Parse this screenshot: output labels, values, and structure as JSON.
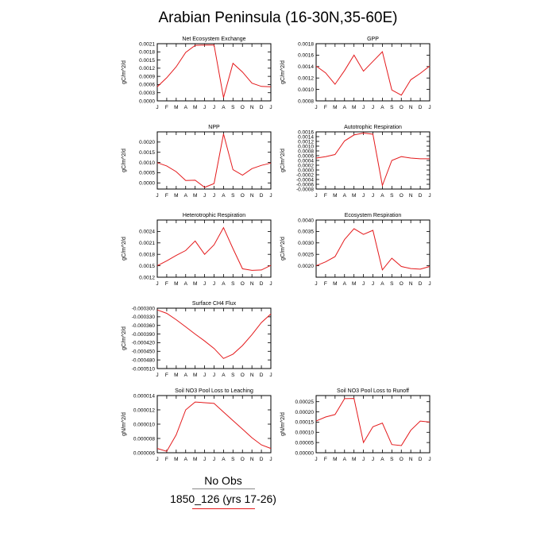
{
  "title": "Arabian Peninsula (16-30N,35-60E)",
  "legend": {
    "obs_label": "No Obs",
    "model_label": "1850_126 (yrs 17-26)",
    "obs_color": "#888888",
    "model_color": "#e41a1c"
  },
  "month_labels": [
    "J",
    "F",
    "M",
    "A",
    "M",
    "J",
    "J",
    "A",
    "S",
    "O",
    "N",
    "D",
    "J"
  ],
  "chart_data": [
    {
      "type": "line",
      "title": "Net Ecosystem Exchange",
      "ylabel": "gC/m^2/d",
      "ylim": [
        0.0,
        0.0021
      ],
      "yticks": [
        "0.0000",
        "0.0003",
        "0.0006",
        "0.0009",
        "0.0012",
        "0.0015",
        "0.0018",
        "0.0021"
      ],
      "series": [
        {
          "values": [
            0.00052,
            0.00085,
            0.00125,
            0.00178,
            0.00204,
            0.00205,
            0.00205,
            0.00012,
            0.00138,
            0.00106,
            0.00065,
            0.00053,
            0.00052
          ]
        }
      ]
    },
    {
      "type": "line",
      "title": "GPP",
      "ylabel": "gC/m^2/d",
      "ylim": [
        0.0008,
        0.0018
      ],
      "yticks": [
        "0.0008",
        "0.0010",
        "0.0012",
        "0.0014",
        "0.0016",
        "0.0018"
      ],
      "series": [
        {
          "values": [
            0.00141,
            0.00129,
            0.00109,
            0.00133,
            0.0016,
            0.00132,
            0.00149,
            0.00166,
            0.00099,
            0.0009,
            0.00117,
            0.00128,
            0.00141
          ]
        }
      ]
    },
    {
      "type": "line",
      "title": "NPP",
      "ylabel": "gC/m^2/d",
      "ylim": [
        -0.0003,
        0.0025
      ],
      "yticks": [
        "0.0000",
        "0.0005",
        "0.0010",
        "0.0015",
        "0.0020"
      ],
      "series": [
        {
          "values": [
            0.00099,
            0.00083,
            0.00055,
            0.00012,
            0.00013,
            -0.00022,
            -3e-05,
            0.0024,
            0.00065,
            0.00038,
            0.0007,
            0.00086,
            0.00097
          ]
        }
      ]
    },
    {
      "type": "line",
      "title": "Autotrophic Respiration",
      "ylabel": "gC/m^2/d",
      "ylim": [
        -0.0008,
        0.0016
      ],
      "yticks": [
        "-0.0008",
        "-0.0006",
        "-0.0004",
        "-0.0002",
        "0.0000",
        "0.0002",
        "0.0004",
        "0.0006",
        "0.0008",
        "0.0010",
        "0.0012",
        "0.0014",
        "0.0016"
      ],
      "series": [
        {
          "values": [
            0.0005,
            0.00056,
            0.00065,
            0.00122,
            0.00147,
            0.00155,
            0.0015,
            -0.00065,
            0.0004,
            0.00056,
            0.0005,
            0.00047,
            0.00047
          ]
        }
      ]
    },
    {
      "type": "line",
      "title": "Heterotrophic Respiration",
      "ylabel": "gC/m^2/d",
      "ylim": [
        0.0012,
        0.0027
      ],
      "yticks": [
        "0.0012",
        "0.0015",
        "0.0018",
        "0.0021",
        "0.0024"
      ],
      "series": [
        {
          "values": [
            0.0015,
            0.00163,
            0.00177,
            0.0019,
            0.00215,
            0.0018,
            0.00205,
            0.0025,
            0.00195,
            0.00142,
            0.00138,
            0.00139,
            0.00151
          ]
        }
      ]
    },
    {
      "type": "line",
      "title": "Ecosystem Respiration",
      "ylabel": "gC/m^2/d",
      "ylim": [
        0.0015,
        0.004
      ],
      "yticks": [
        "0.0020",
        "0.0025",
        "0.0030",
        "0.0035",
        "0.0040"
      ],
      "series": [
        {
          "values": [
            0.002,
            0.00217,
            0.0024,
            0.00315,
            0.00362,
            0.00337,
            0.00355,
            0.00182,
            0.00233,
            0.00197,
            0.00188,
            0.00185,
            0.00197
          ]
        }
      ]
    },
    {
      "type": "line",
      "title": "Surface CH4 Flux",
      "ylabel": "gC/m^2/d",
      "ylim": [
        -0.00051,
        -0.0003
      ],
      "yticks": [
        "-0.000300",
        "-0.000330",
        "-0.000360",
        "-0.000390",
        "-0.000420",
        "-0.000450",
        "-0.000480",
        "-0.000510"
      ],
      "series": [
        {
          "values": [
            -0.000306,
            -0.000318,
            -0.00034,
            -0.000365,
            -0.00039,
            -0.000414,
            -0.00044,
            -0.000475,
            -0.00046,
            -0.00043,
            -0.000392,
            -0.00035,
            -0.00032
          ]
        }
      ]
    },
    {
      "type": "line",
      "title": "Soil NO3 Pool Loss to Leaching",
      "ylabel": "gN/m^2/d",
      "ylim": [
        6e-06,
        1.4e-05
      ],
      "yticks": [
        "0.000006",
        "0.000008",
        "0.000010",
        "0.000012",
        "0.000014"
      ],
      "series": [
        {
          "values": [
            6.6e-06,
            6.2e-06,
            8.5e-06,
            1.2e-05,
            1.31e-05,
            1.3e-05,
            1.29e-05,
            1.17e-05,
            1.05e-05,
            9.3e-06,
            8.1e-06,
            7.1e-06,
            6.6e-06
          ]
        }
      ]
    },
    {
      "type": "line",
      "title": "Soil NO3 Pool Loss to Runoff",
      "ylabel": "gN/m^2/d",
      "ylim": [
        0.0,
        0.00028
      ],
      "yticks": [
        "0.00000",
        "0.00005",
        "0.00010",
        "0.00015",
        "0.00020",
        "0.00025"
      ],
      "series": [
        {
          "values": [
            0.000155,
            0.000175,
            0.000187,
            0.000265,
            0.000266,
            5e-05,
            0.000127,
            0.000145,
            4e-05,
            3.5e-05,
            0.00011,
            0.000155,
            0.00015
          ]
        }
      ]
    }
  ]
}
